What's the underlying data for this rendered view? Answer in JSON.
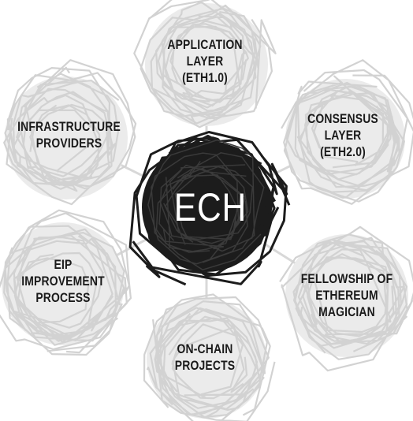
{
  "center": {
    "label": "ECH"
  },
  "nodes": {
    "application": {
      "lines": [
        "APPLICATION",
        "LAYER",
        "(ETH1.0)"
      ]
    },
    "consensus": {
      "lines": [
        "CONSENSUS",
        "LAYER",
        "(ETH2.0)"
      ]
    },
    "infrastructure": {
      "lines": [
        "INFRASTRUCTURE",
        "PROVIDERS"
      ]
    },
    "eip": {
      "lines": [
        "EIP",
        "IMPROVEMENT",
        "PROCESS"
      ]
    },
    "fellowship": {
      "lines": [
        "FELLOWSHIP OF",
        "ETHEREUM",
        "MAGICIAN"
      ]
    },
    "onchain": {
      "lines": [
        "ON-CHAIN",
        "PROJECTS"
      ]
    }
  },
  "colors": {
    "center_fill": "#1c1c1c",
    "node_fill": "#ebebeb",
    "node_scribble": "#d2d2d2",
    "connector": "#d8d8d8",
    "text": "#1a1a1a"
  }
}
